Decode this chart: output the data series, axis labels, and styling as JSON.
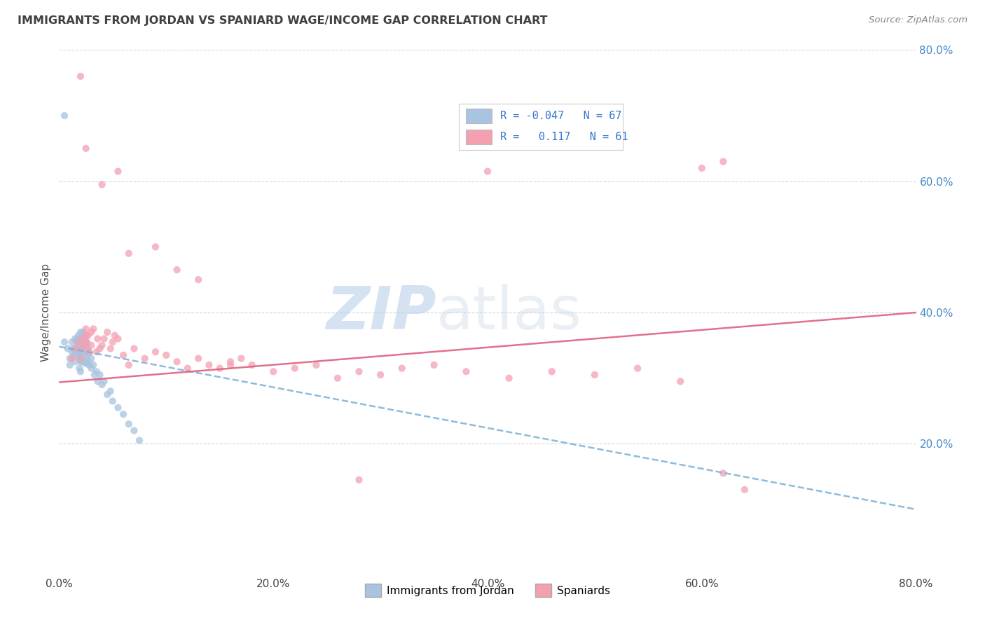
{
  "title": "IMMIGRANTS FROM JORDAN VS SPANIARD WAGE/INCOME GAP CORRELATION CHART",
  "source": "Source: ZipAtlas.com",
  "ylabel": "Wage/Income Gap",
  "xlim": [
    0.0,
    0.8
  ],
  "ylim": [
    0.0,
    0.8
  ],
  "xtick_labels": [
    "0.0%",
    "20.0%",
    "40.0%",
    "60.0%",
    "80.0%"
  ],
  "xtick_vals": [
    0.0,
    0.2,
    0.4,
    0.6,
    0.8
  ],
  "ytick_labels": [
    "20.0%",
    "40.0%",
    "60.0%",
    "80.0%"
  ],
  "ytick_vals_right": [
    0.2,
    0.4,
    0.6,
    0.8
  ],
  "legend_label1": "Immigrants from Jordan",
  "legend_label2": "Spaniards",
  "r1": "-0.047",
  "n1": "67",
  "r2": "0.117",
  "n2": "61",
  "color1": "#a8c4e0",
  "color2": "#f4a0b0",
  "line1_color": "#7ab0d8",
  "line2_color": "#e06080",
  "watermark_zip": "ZIP",
  "watermark_atlas": "atlas",
  "watermark_color_zip": "#b8cfe8",
  "watermark_color_atlas": "#c8d8e8",
  "background_color": "#ffffff",
  "grid_color": "#d0d8e0",
  "title_color": "#404040",
  "right_axis_color": "#4488cc",
  "jordan_x": [
    0.005,
    0.008,
    0.01,
    0.01,
    0.012,
    0.012,
    0.013,
    0.014,
    0.015,
    0.015,
    0.015,
    0.016,
    0.016,
    0.017,
    0.017,
    0.018,
    0.018,
    0.018,
    0.019,
    0.019,
    0.019,
    0.019,
    0.02,
    0.02,
    0.02,
    0.02,
    0.02,
    0.021,
    0.021,
    0.021,
    0.022,
    0.022,
    0.022,
    0.022,
    0.023,
    0.023,
    0.023,
    0.024,
    0.024,
    0.024,
    0.025,
    0.025,
    0.025,
    0.026,
    0.026,
    0.027,
    0.027,
    0.028,
    0.028,
    0.03,
    0.03,
    0.032,
    0.033,
    0.035,
    0.036,
    0.038,
    0.04,
    0.042,
    0.045,
    0.048,
    0.05,
    0.055,
    0.06,
    0.065,
    0.07,
    0.075,
    0.005
  ],
  "jordan_y": [
    0.355,
    0.345,
    0.33,
    0.32,
    0.355,
    0.34,
    0.345,
    0.335,
    0.36,
    0.34,
    0.325,
    0.355,
    0.34,
    0.36,
    0.345,
    0.365,
    0.35,
    0.335,
    0.36,
    0.345,
    0.33,
    0.315,
    0.37,
    0.355,
    0.34,
    0.325,
    0.31,
    0.365,
    0.35,
    0.335,
    0.37,
    0.355,
    0.34,
    0.325,
    0.365,
    0.348,
    0.332,
    0.36,
    0.342,
    0.325,
    0.355,
    0.34,
    0.322,
    0.348,
    0.33,
    0.342,
    0.325,
    0.338,
    0.32,
    0.33,
    0.315,
    0.32,
    0.305,
    0.31,
    0.295,
    0.305,
    0.29,
    0.295,
    0.275,
    0.28,
    0.265,
    0.255,
    0.245,
    0.23,
    0.22,
    0.205,
    0.7
  ],
  "spaniard_x": [
    0.012,
    0.015,
    0.018,
    0.02,
    0.022,
    0.022,
    0.024,
    0.025,
    0.025,
    0.026,
    0.027,
    0.028,
    0.03,
    0.03,
    0.032,
    0.035,
    0.036,
    0.038,
    0.04,
    0.042,
    0.045,
    0.048,
    0.05,
    0.052,
    0.055,
    0.06,
    0.065,
    0.07,
    0.08,
    0.09,
    0.1,
    0.11,
    0.12,
    0.13,
    0.14,
    0.15,
    0.16,
    0.17,
    0.18,
    0.2,
    0.22,
    0.24,
    0.26,
    0.28,
    0.3,
    0.32,
    0.35,
    0.38,
    0.42,
    0.46,
    0.5,
    0.54,
    0.58,
    0.62,
    0.065,
    0.09,
    0.11,
    0.13,
    0.16,
    0.28,
    0.64
  ],
  "spaniard_y": [
    0.33,
    0.345,
    0.355,
    0.33,
    0.36,
    0.345,
    0.35,
    0.365,
    0.375,
    0.355,
    0.365,
    0.34,
    0.37,
    0.35,
    0.375,
    0.34,
    0.36,
    0.345,
    0.35,
    0.36,
    0.37,
    0.345,
    0.355,
    0.365,
    0.36,
    0.335,
    0.32,
    0.345,
    0.33,
    0.34,
    0.335,
    0.325,
    0.315,
    0.33,
    0.32,
    0.315,
    0.325,
    0.33,
    0.32,
    0.31,
    0.315,
    0.32,
    0.3,
    0.31,
    0.305,
    0.315,
    0.32,
    0.31,
    0.3,
    0.31,
    0.305,
    0.315,
    0.295,
    0.63,
    0.49,
    0.5,
    0.465,
    0.45,
    0.32,
    0.145,
    0.13
  ],
  "spaniard_outliers_x": [
    0.02,
    0.025,
    0.04,
    0.055,
    0.4,
    0.6,
    0.62
  ],
  "spaniard_outliers_y": [
    0.76,
    0.65,
    0.595,
    0.615,
    0.615,
    0.62,
    0.155
  ],
  "jordan_outlier_x": [
    0.005
  ],
  "jordan_outlier_y": [
    0.7
  ]
}
